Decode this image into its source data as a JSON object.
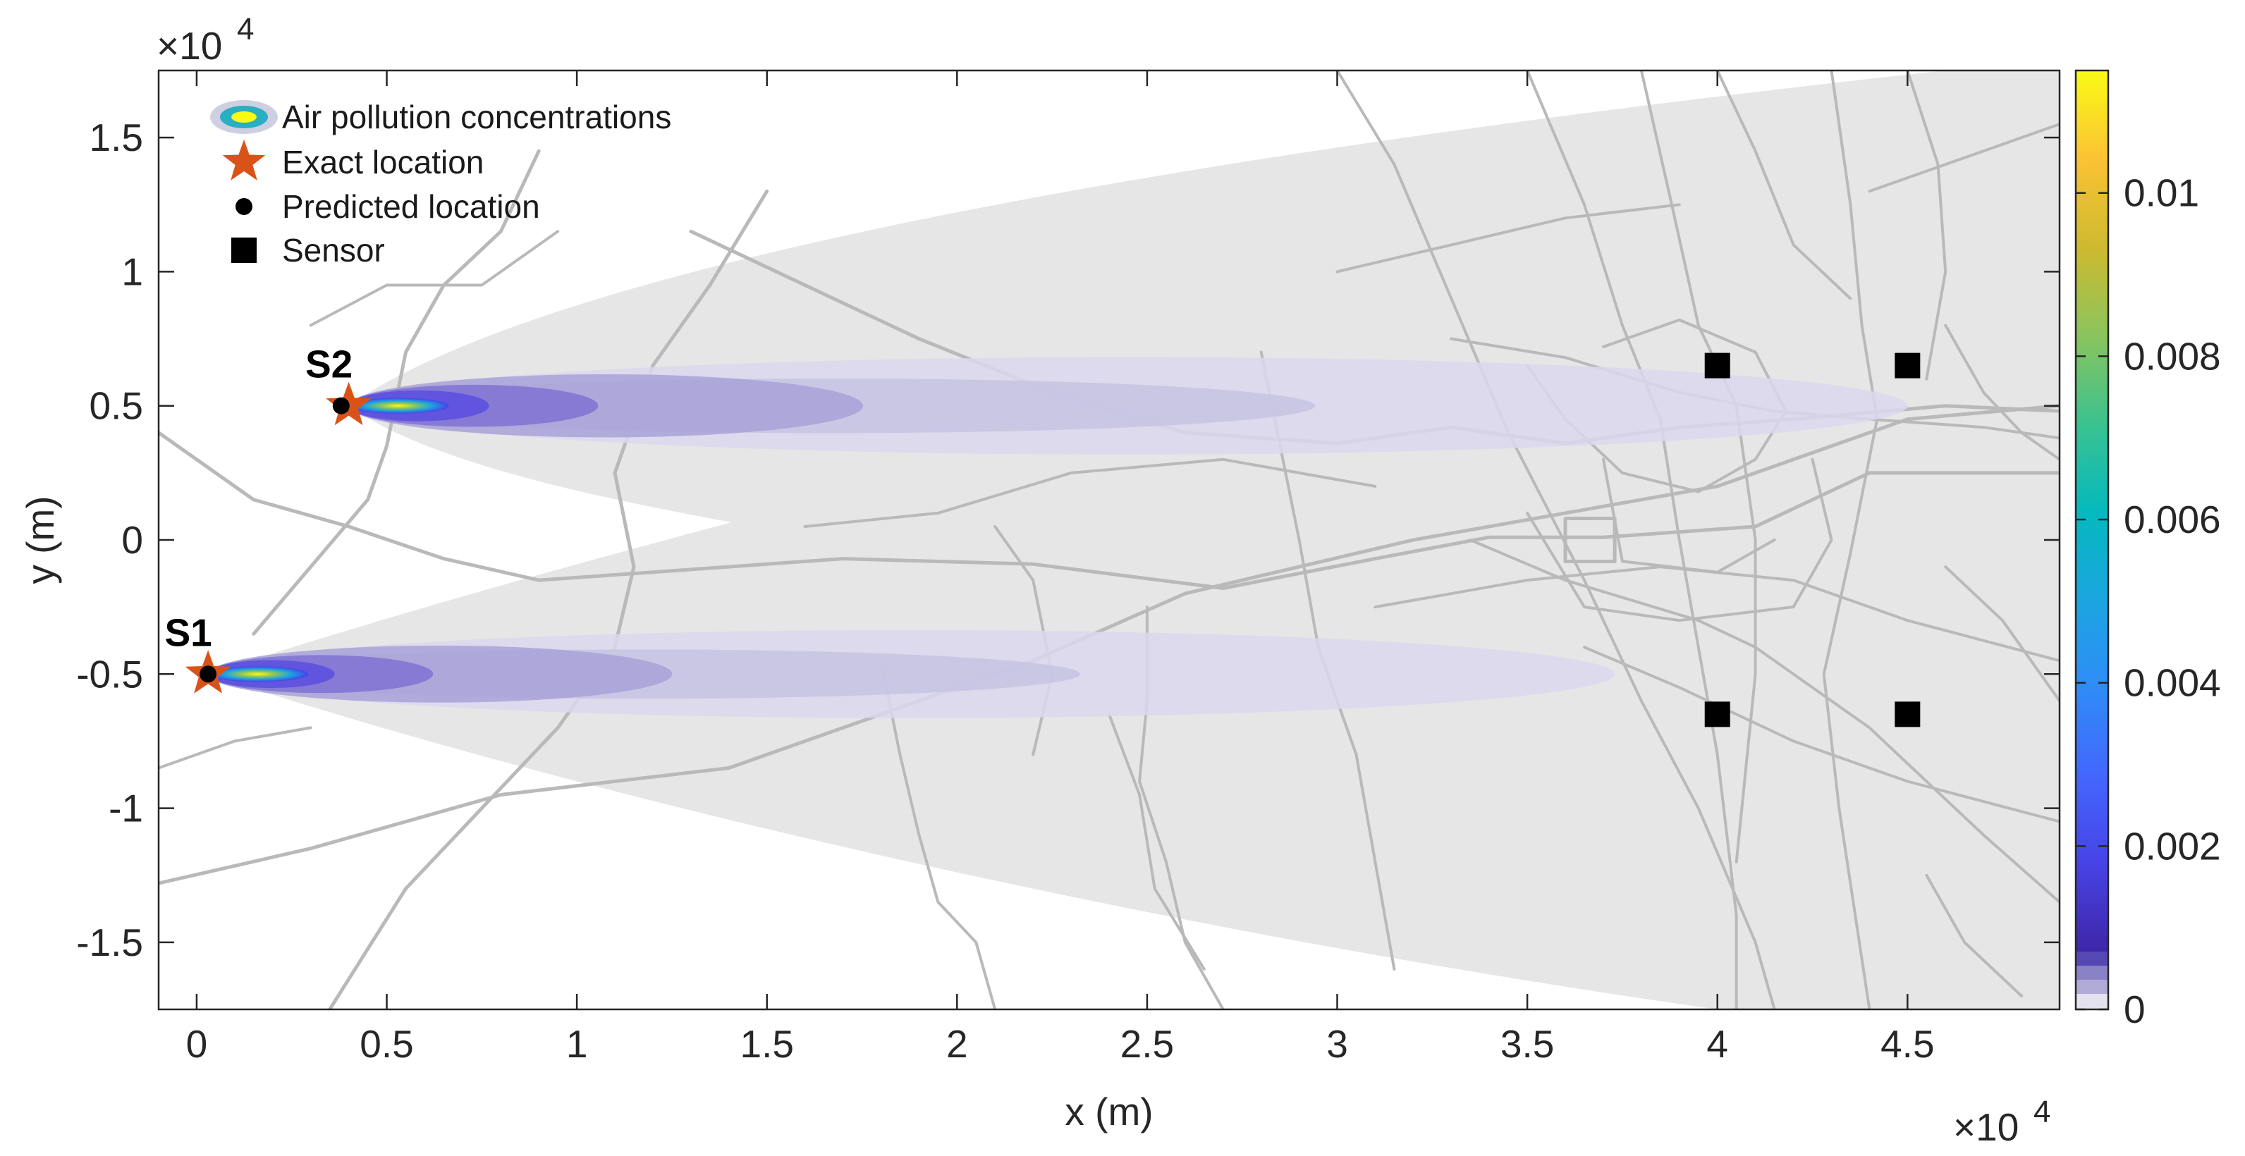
{
  "chart_data": {
    "type": "scatter",
    "title": "",
    "xlabel": "x (m)",
    "ylabel": "y (m)",
    "x_exponent_label": "×10",
    "x_exponent_power": "4",
    "y_exponent_label": "×10",
    "y_exponent_power": "4",
    "xlim": [
      -1000,
      49000
    ],
    "ylim": [
      -17500,
      17500
    ],
    "x_ticks": [
      0,
      5000,
      10000,
      15000,
      20000,
      25000,
      30000,
      35000,
      40000,
      45000
    ],
    "x_tick_labels": [
      "0",
      "0.5",
      "1",
      "1.5",
      "2",
      "2.5",
      "3",
      "3.5",
      "4",
      "4.5"
    ],
    "y_ticks": [
      15000,
      10000,
      5000,
      0,
      -5000,
      -10000,
      -15000
    ],
    "y_tick_labels": [
      "1.5",
      "1",
      "0.5",
      "0",
      "-0.5",
      "-1",
      "-1.5"
    ],
    "grid": false,
    "legend_position": "top-left",
    "legend": [
      {
        "name": "Air pollution concentrations",
        "marker": "plume"
      },
      {
        "name": "Exact location",
        "marker": "star"
      },
      {
        "name": "Predicted location",
        "marker": "dot"
      },
      {
        "name": "Sensor",
        "marker": "square"
      }
    ],
    "sources": [
      {
        "label": "S1",
        "exact": [
          300,
          -5000
        ],
        "predicted": [
          300,
          -5000
        ],
        "plume_length": 37000
      },
      {
        "label": "S2",
        "exact": [
          4000,
          5000
        ],
        "predicted": [
          3800,
          5000
        ],
        "plume_length": 41000
      }
    ],
    "sensors": [
      {
        "x": 40000,
        "y": 6500
      },
      {
        "x": 45000,
        "y": 6500
      },
      {
        "x": 40000,
        "y": -6500
      },
      {
        "x": 45000,
        "y": -6500
      }
    ],
    "colorbar": {
      "colormap": "parula",
      "min": 0,
      "max": 0.0115,
      "ticks": [
        0,
        0.002,
        0.004,
        0.006,
        0.008,
        0.01
      ],
      "tick_labels": [
        "0",
        "0.002",
        "0.004",
        "0.006",
        "0.008",
        "0.01"
      ]
    },
    "colors": {
      "exact_marker": "#D95319",
      "predicted_marker": "#000000",
      "sensor_marker": "#000000",
      "domain_fill": "#e6e6e6",
      "roads": "#b9b9b9"
    }
  }
}
